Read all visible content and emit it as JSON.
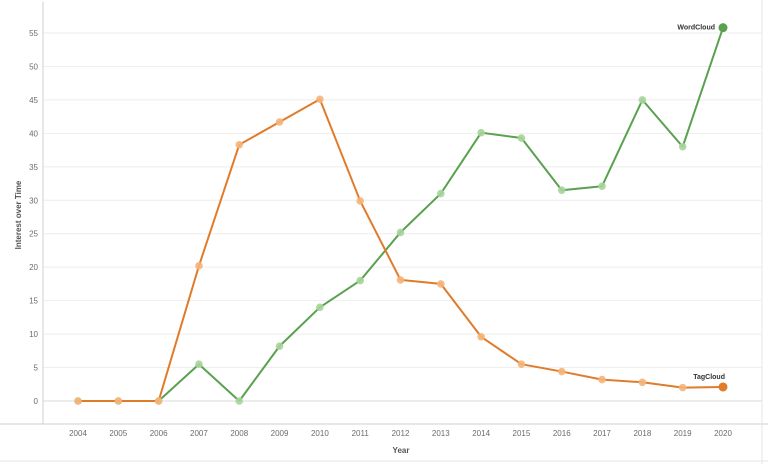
{
  "chart_data": {
    "type": "line",
    "xlabel": "Year",
    "ylabel": "Interest over Time",
    "x": [
      "2004",
      "2005",
      "2006",
      "2007",
      "2008",
      "2009",
      "2010",
      "2011",
      "2012",
      "2013",
      "2014",
      "2015",
      "2016",
      "2017",
      "2018",
      "2019",
      "2020"
    ],
    "ylim": [
      0,
      58
    ],
    "yticks": [
      0,
      5,
      10,
      15,
      20,
      25,
      30,
      35,
      40,
      45,
      50,
      55
    ],
    "grid": "horizontal",
    "series": [
      {
        "name": "WordCloud",
        "color": "#59a14f",
        "marker_light": "#a6d49a",
        "values": [
          0,
          0,
          0,
          5.5,
          0,
          8.2,
          14,
          18,
          25.2,
          31,
          40.1,
          39.3,
          31.5,
          32.1,
          45,
          38,
          55.8
        ]
      },
      {
        "name": "TagCloud",
        "color": "#e07b2a",
        "marker_light": "#f5b47a",
        "values": [
          0,
          0,
          0,
          20.2,
          38.3,
          41.7,
          45.1,
          29.9,
          18.1,
          17.5,
          9.6,
          5.5,
          4.4,
          3.2,
          2.8,
          2.0,
          2.1
        ]
      }
    ]
  }
}
